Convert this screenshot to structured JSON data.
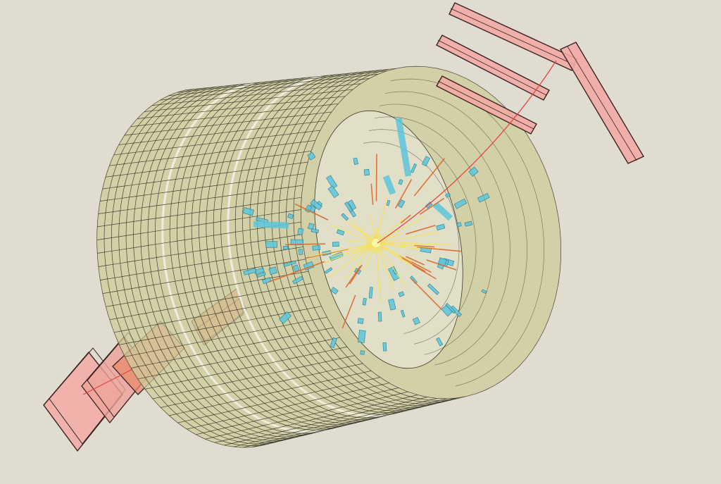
{
  "colors": {
    "background": "#e0dccf",
    "calorimeter_fill": "#cfcc9a",
    "calorimeter_grid": "#2b2b22",
    "calorimeter_gap": "#f2efe4",
    "inner_bore": "#ecebe2",
    "muon_chamber_fill": "#f2aaa3",
    "muon_chamber_edge": "#3a2222",
    "forward_chamber_fill": "#e88a6e",
    "tracker_hit": "#5cc6da",
    "tracker_hit_edge": "#2a7f90",
    "track_yellow": "#f7e15a",
    "track_orange": "#d9682a",
    "muon_track": "#e8433f"
  },
  "detector": {
    "calorimeter_rings": 28,
    "calorimeter_sectors": 42,
    "gap_rings": [
      9,
      18
    ]
  },
  "event": {
    "vertex_core": "#fff7a8",
    "yellow_tracks": 34,
    "orange_tracks": 22,
    "tracker_hits": 80
  }
}
